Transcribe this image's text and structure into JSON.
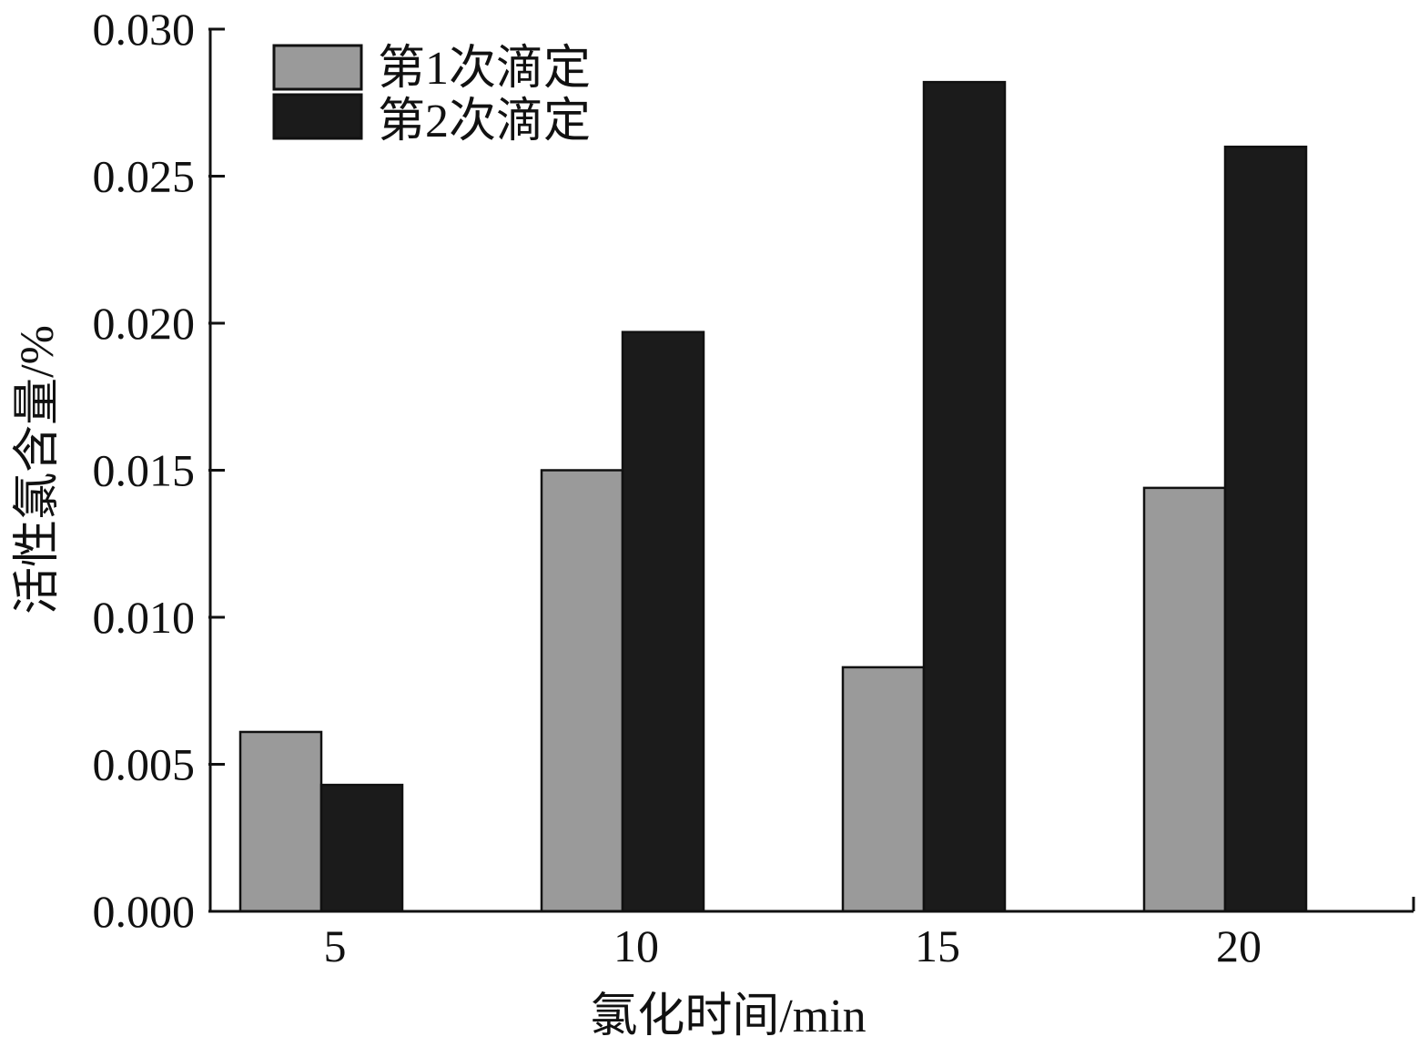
{
  "chart_data": {
    "type": "bar",
    "categories": [
      "5",
      "10",
      "15",
      "20"
    ],
    "series": [
      {
        "name": "第1次滴定",
        "values": [
          0.0061,
          0.015,
          0.0083,
          0.0144
        ],
        "color": "#9a9a9a"
      },
      {
        "name": "第2次滴定",
        "values": [
          0.0043,
          0.0197,
          0.0282,
          0.026
        ],
        "color": "#1b1b1b"
      }
    ],
    "xlabel": "氯化时间/min",
    "ylabel": "活性氯含量/%",
    "ylim": [
      0,
      0.03
    ],
    "yticks": [
      "0.000",
      "0.005",
      "0.010",
      "0.015",
      "0.020",
      "0.025",
      "0.030"
    ],
    "grid": false,
    "legend_position": "top-left"
  }
}
